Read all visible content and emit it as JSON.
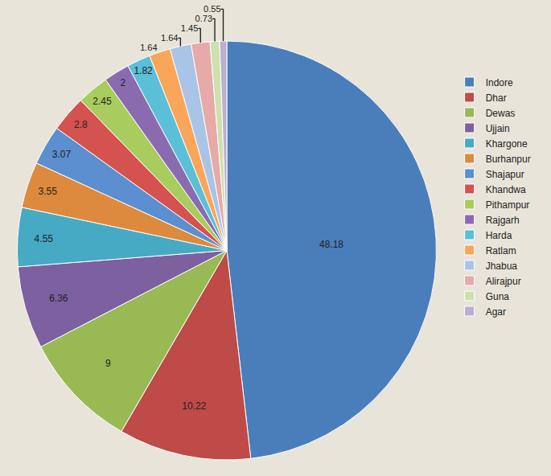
{
  "chart_data": {
    "type": "pie",
    "categories": [
      "Indore",
      "Dhar",
      "Dewas",
      "Ujjain",
      "Khargone",
      "Burhanpur",
      "Shajapur",
      "Khandwa",
      "Pithampur",
      "Rajgarh",
      "Harda",
      "Ratlam",
      "Jhabua",
      "Alirajpur",
      "Guna",
      "Agar"
    ],
    "values": [
      48.18,
      10.22,
      9,
      6.36,
      4.55,
      3.55,
      3.07,
      2.8,
      2.45,
      2,
      1.82,
      1.64,
      1.64,
      1.45,
      0.73,
      0.55
    ],
    "colors": [
      "#4a7ebb",
      "#be4b48",
      "#98b954",
      "#7d60a0",
      "#46aac5",
      "#dd8a3e",
      "#5b8fd0",
      "#d4524f",
      "#a8cc5e",
      "#8a6bb0",
      "#5bbfd8",
      "#f9a65a",
      "#a9c4e6",
      "#e6aaa9",
      "#cfe0b0",
      "#bcafd0"
    ],
    "data_labels": true,
    "legend": "right"
  }
}
